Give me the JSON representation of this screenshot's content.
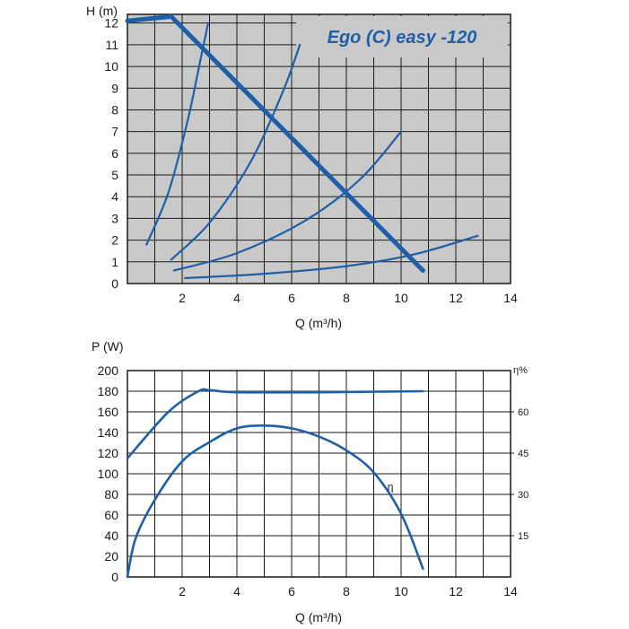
{
  "chart_data": [
    {
      "type": "line",
      "title": "Ego (C) easy -120",
      "xlabel": "Q (m³/h)",
      "ylabel": "H (m)",
      "xlim": [
        0,
        14
      ],
      "ylim": [
        0,
        12.4
      ],
      "xticks": [
        2,
        4,
        6,
        8,
        10,
        12,
        14
      ],
      "yticks": [
        0,
        1,
        2,
        3,
        4,
        5,
        6,
        7,
        8,
        9,
        10,
        11,
        12
      ],
      "grid": true,
      "colors": {
        "line": "#1f5fa8",
        "panel": "#c9c9c9",
        "grid": "#1a1a1a"
      },
      "series": [
        {
          "role": "pump",
          "x": [
            0,
            1.6,
            10.8
          ],
          "y": [
            12.1,
            12.3,
            0.6
          ]
        },
        {
          "role": "system",
          "x": [
            0.7,
            1.5,
            2.2,
            2.7,
            2.95
          ],
          "y": [
            1.8,
            4.2,
            7.5,
            10.5,
            12
          ]
        },
        {
          "role": "system",
          "x": [
            1.6,
            3.0,
            4.5,
            5.7,
            6.3
          ],
          "y": [
            1.1,
            2.8,
            5.6,
            8.9,
            11
          ]
        },
        {
          "role": "system",
          "x": [
            1.7,
            4.0,
            6.5,
            8.5,
            10.0
          ],
          "y": [
            0.6,
            1.4,
            2.9,
            4.8,
            7
          ]
        },
        {
          "role": "system",
          "x": [
            2.1,
            5.0,
            8.0,
            10.5,
            12.8
          ],
          "y": [
            0.25,
            0.45,
            0.8,
            1.35,
            2.2
          ]
        }
      ]
    },
    {
      "type": "line",
      "title": "",
      "xlabel": "Q (m³/h)",
      "ylabel": "P (W)",
      "y2label": "η%",
      "xlim": [
        0,
        14
      ],
      "ylim": [
        0,
        200
      ],
      "y2lim": [
        0,
        75
      ],
      "xticks": [
        2,
        4,
        6,
        8,
        10,
        12,
        14
      ],
      "yticks": [
        0,
        20,
        40,
        60,
        80,
        100,
        120,
        140,
        160,
        180,
        200
      ],
      "y2ticks": [
        15,
        30,
        45,
        60
      ],
      "grid": true,
      "annotations": [
        {
          "text": "η",
          "x": 9.5,
          "y": 70
        }
      ],
      "series": [
        {
          "role": "power",
          "axis": "left",
          "x": [
            0,
            1.5,
            2.6,
            3.0,
            4.0,
            7.0,
            10.8
          ],
          "y": [
            115,
            160,
            180,
            181,
            179,
            179,
            180
          ]
        },
        {
          "role": "efficiency",
          "axis": "right",
          "x": [
            0,
            0.3,
            1.0,
            2.0,
            3.0,
            4.0,
            5.0,
            6.0,
            7.0,
            8.0,
            9.0,
            10.0,
            10.8
          ],
          "y": [
            0,
            14,
            28,
            42,
            49,
            54,
            55,
            54,
            51,
            46,
            38,
            23,
            3
          ]
        }
      ]
    }
  ]
}
